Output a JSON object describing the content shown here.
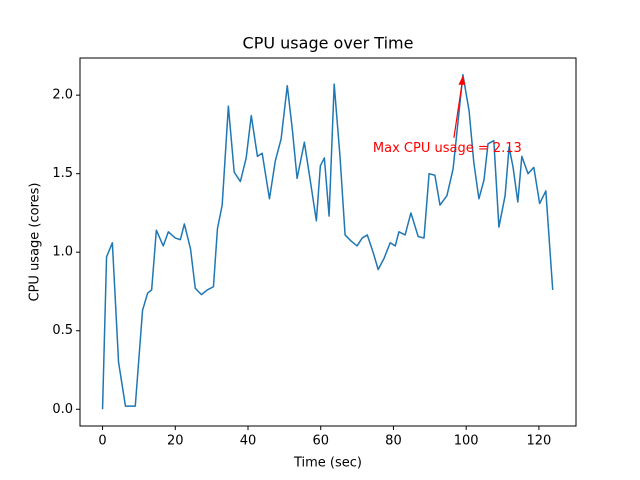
{
  "chart_data": {
    "type": "line",
    "title": "CPU usage over Time",
    "x_label": "Time (sec)",
    "y_label": "CPU usage (cores)",
    "x": [
      0,
      1.1,
      2.7,
      4.4,
      6.3,
      9,
      11,
      12.4,
      13.5,
      14.8,
      16.7,
      18.1,
      20,
      21.4,
      22.5,
      24.2,
      25.5,
      27.2,
      28.8,
      30.5,
      31.6,
      32.9,
      34.6,
      36.2,
      37.9,
      39.5,
      40.9,
      42.6,
      43.9,
      45.9,
      47.5,
      49.1,
      50.8,
      52.2,
      53.5,
      55.5,
      57.1,
      58.8,
      59.9,
      61,
      62.3,
      63.7,
      65.3,
      66.7,
      68.4,
      70,
      71.4,
      72.8,
      74.4,
      75.8,
      77.4,
      79.1,
      80.5,
      81.5,
      83.2,
      84.8,
      86.8,
      88.4,
      89.8,
      91.4,
      92.8,
      94.7,
      96.4,
      99.1,
      100.8,
      102.1,
      103.5,
      104.9,
      106,
      107.6,
      109,
      110.7,
      111.8,
      112.9,
      114.2,
      115.3,
      117,
      118.6,
      120.2,
      121.9,
      123.8
    ],
    "values": [
      0.0,
      0.97,
      1.06,
      0.3,
      0.02,
      0.02,
      0.63,
      0.74,
      0.76,
      1.14,
      1.04,
      1.13,
      1.09,
      1.08,
      1.18,
      1.02,
      0.77,
      0.73,
      0.76,
      0.78,
      1.15,
      1.3,
      1.93,
      1.51,
      1.45,
      1.6,
      1.87,
      1.61,
      1.63,
      1.34,
      1.58,
      1.72,
      2.06,
      1.78,
      1.47,
      1.7,
      1.46,
      1.2,
      1.55,
      1.6,
      1.23,
      2.07,
      1.61,
      1.11,
      1.07,
      1.04,
      1.09,
      1.11,
      1.0,
      0.89,
      0.96,
      1.06,
      1.04,
      1.13,
      1.11,
      1.25,
      1.1,
      1.09,
      1.5,
      1.49,
      1.3,
      1.36,
      1.53,
      2.13,
      1.9,
      1.57,
      1.34,
      1.46,
      1.69,
      1.71,
      1.16,
      1.36,
      1.67,
      1.54,
      1.32,
      1.61,
      1.5,
      1.54,
      1.31,
      1.39,
      0.76
    ],
    "color": "#1f77b4",
    "annotation": {
      "text": "Max CPU usage = 2.13",
      "color": "red"
    },
    "xlim": [
      -6.2,
      130.2
    ],
    "xticks": [
      0,
      20,
      40,
      60,
      80,
      100,
      120
    ],
    "ylim": [
      -0.1065,
      2.2365
    ],
    "yticks": [
      {
        "value": 0,
        "label": "0.0"
      },
      0.5,
      {
        "value": 1,
        "label": "1.0"
      },
      1.5,
      {
        "value": 2,
        "label": "2.0"
      }
    ],
    "grid": false
  }
}
